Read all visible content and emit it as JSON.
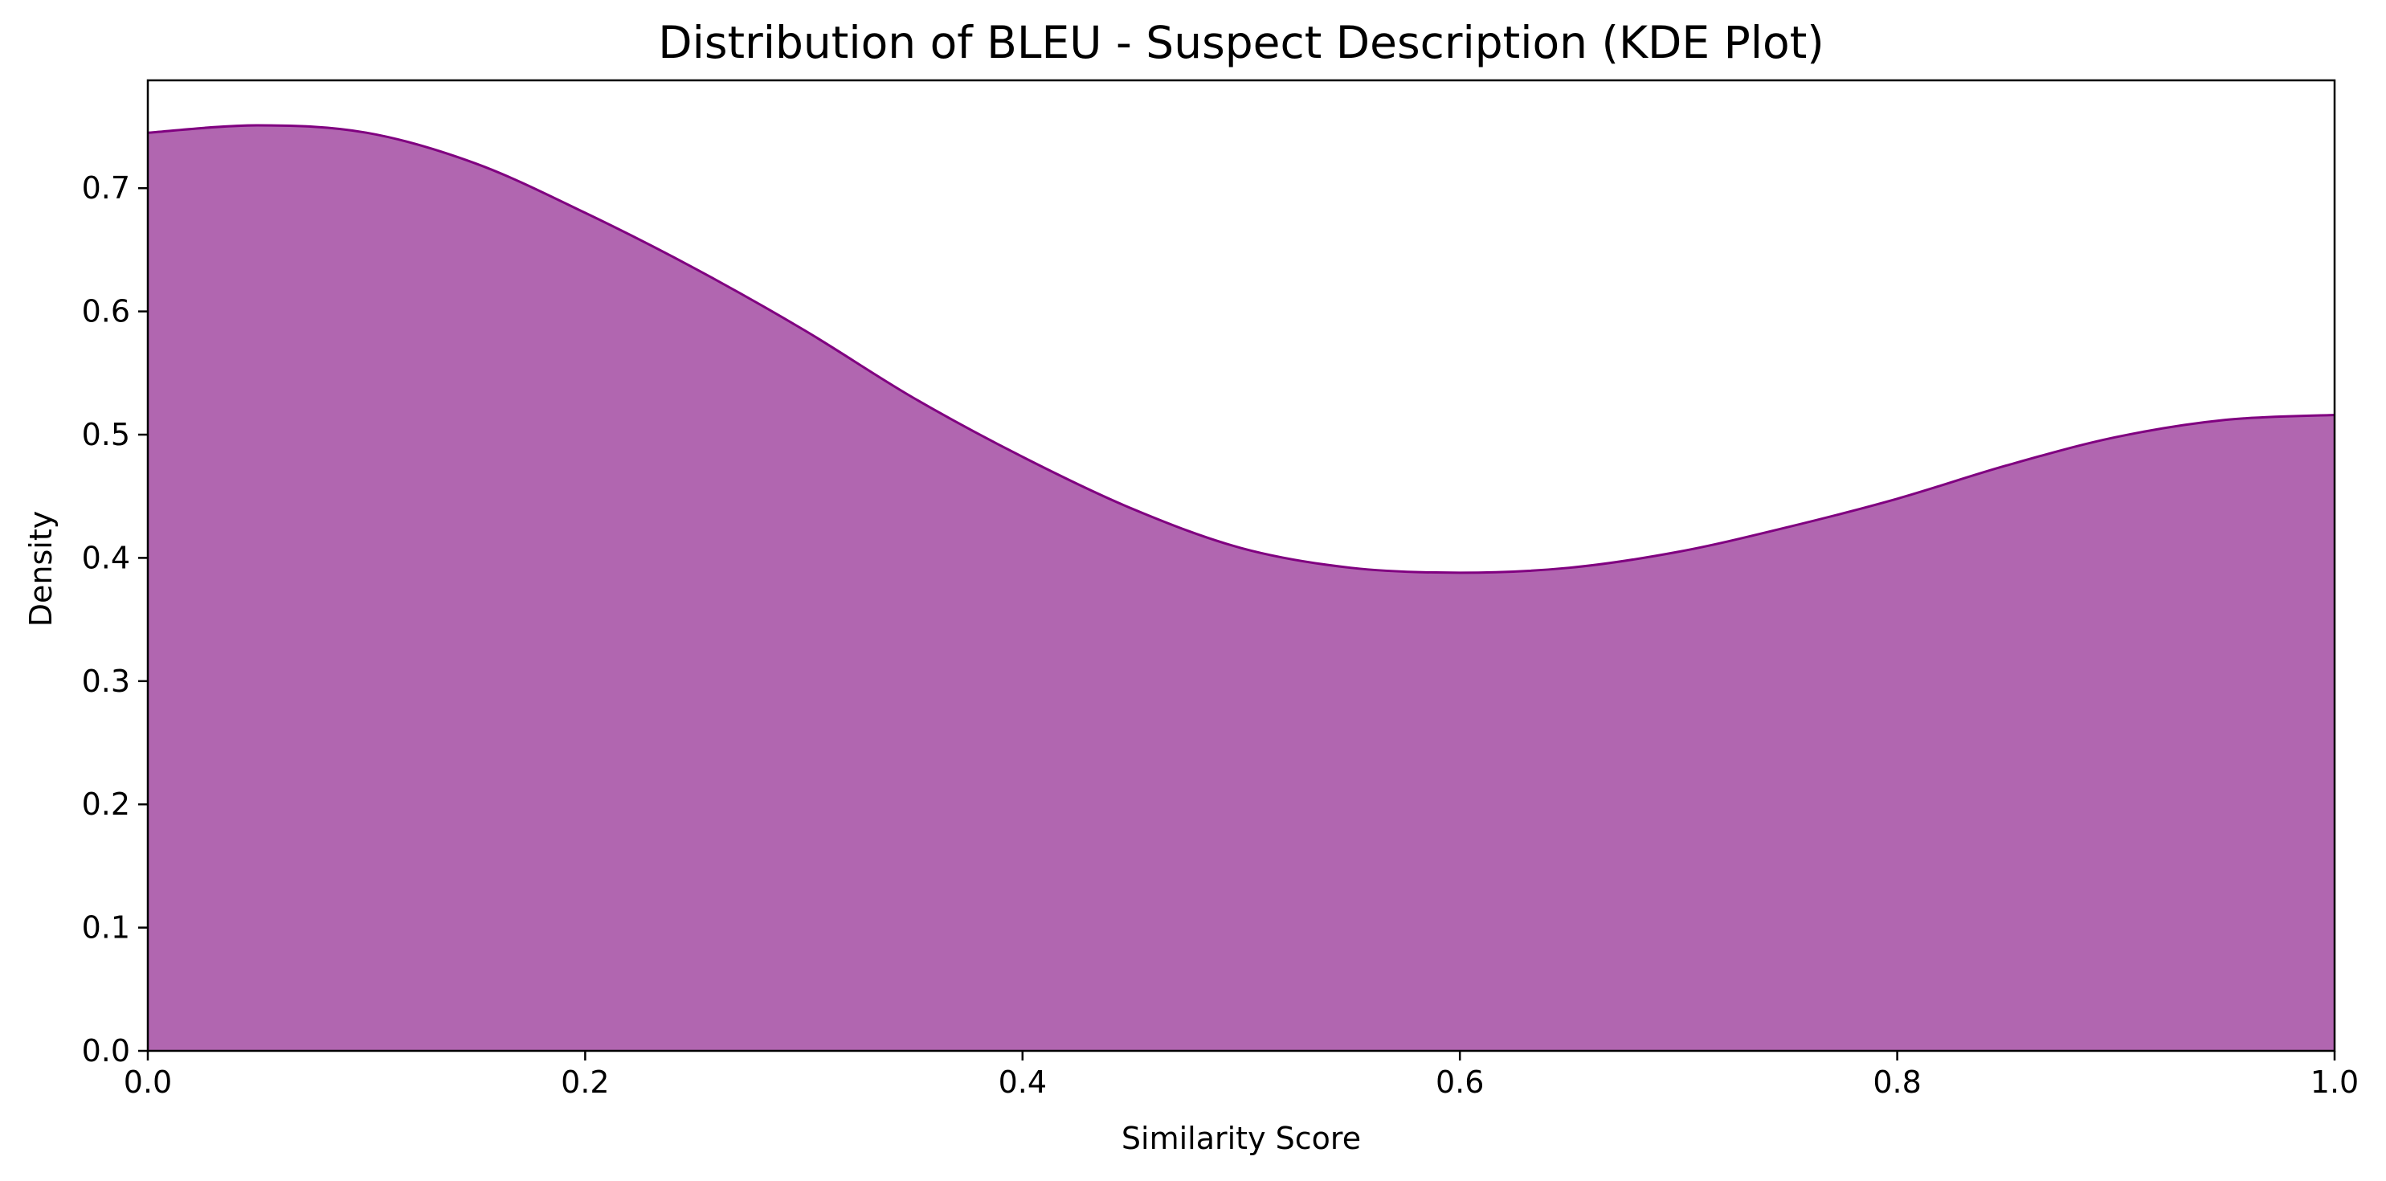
{
  "chart_data": {
    "type": "area",
    "title": "Distribution of BLEU - Suspect Description (KDE Plot)",
    "xlabel": "Similarity Score",
    "ylabel": "Density",
    "xlim": [
      0.0,
      1.0
    ],
    "ylim": [
      0.0,
      0.7875
    ],
    "xticks": [
      "0.0",
      "0.2",
      "0.4",
      "0.6",
      "0.8",
      "1.0"
    ],
    "yticks": [
      "0.0",
      "0.1",
      "0.2",
      "0.3",
      "0.4",
      "0.5",
      "0.6",
      "0.7"
    ],
    "grid": false,
    "legend": "none",
    "fill_color": "#b166b0",
    "line_color": "#800080",
    "series": [
      {
        "x": [
          0.0,
          0.05,
          0.1,
          0.15,
          0.2,
          0.25,
          0.3,
          0.35,
          0.4,
          0.45,
          0.5,
          0.55,
          0.6,
          0.65,
          0.7,
          0.75,
          0.8,
          0.85,
          0.9,
          0.95,
          1.0
        ],
        "values": [
          0.745,
          0.751,
          0.745,
          0.72,
          0.68,
          0.635,
          0.585,
          0.53,
          0.482,
          0.44,
          0.408,
          0.392,
          0.388,
          0.392,
          0.405,
          0.425,
          0.448,
          0.475,
          0.498,
          0.512,
          0.516
        ]
      }
    ]
  }
}
